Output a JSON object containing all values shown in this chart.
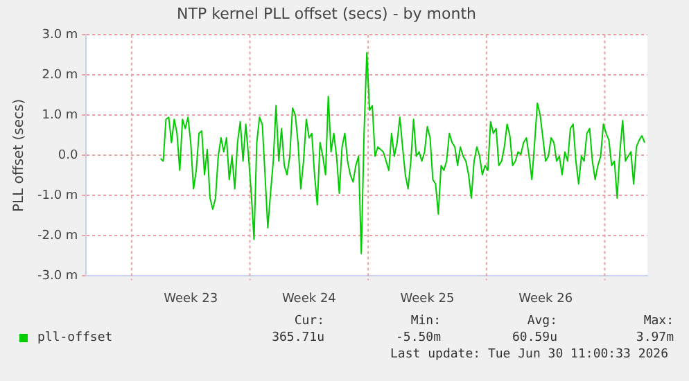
{
  "chart_data": {
    "type": "line",
    "title": "NTP kernel PLL offset (secs) - by month",
    "ylabel": "PLL offset (secs)",
    "categories": [
      null,
      null,
      null,
      null,
      null,
      null,
      null,
      null,
      null,
      null,
      null,
      null,
      null,
      null,
      null,
      null,
      null,
      null,
      null,
      null,
      null,
      null,
      null,
      null,
      null,
      null,
      null,
      null,
      null,
      null,
      null,
      null,
      null,
      null,
      null,
      null,
      null,
      null,
      "Week 23",
      null,
      null,
      null,
      null,
      null,
      null,
      null,
      null,
      null,
      null,
      null,
      null,
      null,
      null,
      null,
      null,
      null,
      null,
      null,
      null,
      null,
      null,
      null,
      null,
      null,
      null,
      null,
      null,
      null,
      null,
      null,
      null,
      null,
      null,
      null,
      null,
      null,
      null,
      null,
      null,
      null,
      null,
      "Week 24",
      null,
      null,
      null,
      null,
      null,
      null,
      null,
      null,
      null,
      null,
      null,
      null,
      null,
      null,
      null,
      null,
      null,
      null,
      null,
      null,
      null,
      null,
      null,
      null,
      null,
      null,
      null,
      null,
      null,
      null,
      null,
      null,
      null,
      null,
      null,
      null,
      null,
      null,
      null,
      null,
      null,
      null,
      "Week 25",
      null,
      null,
      null,
      null,
      null,
      null,
      null,
      null,
      null,
      null,
      null,
      null,
      null,
      null,
      null,
      null,
      null,
      null,
      null,
      null,
      null,
      null,
      null,
      null,
      null,
      null,
      null,
      null,
      null,
      null,
      null,
      null,
      null,
      null,
      null,
      null,
      null,
      null,
      null,
      null,
      null,
      null,
      "Week 26",
      null,
      null,
      null,
      null,
      null,
      null,
      null,
      null,
      null,
      null,
      null,
      null,
      null,
      null,
      null,
      null,
      null,
      null,
      null,
      null,
      null,
      null,
      null,
      null,
      null,
      null,
      null,
      null,
      null,
      null,
      null,
      null,
      null,
      null,
      null,
      null,
      null
    ],
    "ylim": [
      -3,
      3
    ],
    "yticks": [
      {
        "value": -3,
        "label": "-3.0 m"
      },
      {
        "value": -2,
        "label": "-2.0 m"
      },
      {
        "value": -1,
        "label": "-1.0 m"
      },
      {
        "value": 0,
        "label": "0.0"
      },
      {
        "value": 1,
        "label": "1.0 m"
      },
      {
        "value": 2,
        "label": "2.0 m"
      },
      {
        "value": 3,
        "label": "3.0 m"
      }
    ],
    "grid": true,
    "legend": "bottom",
    "marker": "none",
    "line_style": "solid",
    "annotations": [
      "Cur:",
      "Min:",
      "Avg:",
      "Max:",
      "365.71u",
      "-5.50m",
      "60.59u",
      "3.97m",
      "Last update: Tue Jun 30 11:00:33 2026"
    ],
    "series": [
      {
        "name": "pll-offset",
        "color": "#00cc00",
        "values": [
          null,
          null,
          null,
          null,
          null,
          null,
          null,
          null,
          null,
          null,
          null,
          null,
          null,
          null,
          null,
          null,
          null,
          null,
          null,
          null,
          null,
          null,
          null,
          null,
          null,
          null,
          null,
          -0.08,
          -0.14,
          0.9,
          0.95,
          0.32,
          0.9,
          0.55,
          -0.37,
          0.9,
          0.67,
          0.95,
          0.32,
          -0.83,
          -0.37,
          0.55,
          0.61,
          -0.48,
          0.15,
          -1.06,
          -1.34,
          -1.06,
          -0.02,
          0.44,
          0.09,
          0.44,
          -0.6,
          -0.02,
          -0.83,
          0.32,
          0.84,
          -0.14,
          0.78,
          -0.02,
          -0.94,
          -2.09,
          0.32,
          0.95,
          0.78,
          -0.48,
          -1.8,
          -0.94,
          -0.14,
          1.24,
          -0.14,
          0.67,
          -0.25,
          -0.48,
          -0.02,
          1.18,
          1.01,
          0.32,
          -0.83,
          -0.14,
          0.9,
          0.44,
          0.55,
          -0.48,
          -1.23,
          0.32,
          -0.02,
          -0.48,
          1.47,
          0.09,
          0.55,
          -0.02,
          -0.94,
          0.21,
          0.55,
          -0.14,
          -0.48,
          -0.66,
          -0.25,
          -0.02,
          -2.44,
          0.55,
          2.56,
          1.13,
          1.24,
          -0.02,
          0.21,
          0.15,
          0.09,
          -0.14,
          -0.37,
          0.55,
          -0.02,
          0.32,
          0.95,
          0.21,
          -0.48,
          -0.83,
          -0.14,
          0.9,
          -0.02,
          0.09,
          -0.14,
          0.09,
          0.72,
          0.44,
          -0.6,
          -0.71,
          -1.46,
          -0.25,
          -0.37,
          -0.14,
          0.55,
          0.32,
          0.21,
          -0.25,
          0.21,
          -0.02,
          -0.14,
          -0.48,
          -1.06,
          -0.14,
          0.21,
          -0.02,
          -0.48,
          -0.25,
          -0.37,
          0.84,
          0.55,
          0.67,
          -0.25,
          -0.14,
          0.21,
          0.78,
          0.49,
          -0.25,
          -0.14,
          0.09,
          0.03,
          0.32,
          0.44,
          -0.02,
          -0.6,
          0.32,
          1.3,
          1.01,
          0.44,
          -0.14,
          -0.02,
          0.44,
          0.32,
          -0.14,
          -0.02,
          -0.48,
          0.09,
          -0.14,
          0.67,
          0.78,
          -0.14,
          -0.71,
          -0.02,
          -0.14,
          0.55,
          0.67,
          -0.14,
          -0.6,
          -0.25,
          -0.02,
          0.78,
          0.55,
          0.38,
          -0.25,
          -0.14,
          -1.06,
          0.09,
          0.87,
          -0.14,
          -0.02,
          0.09,
          -0.71,
          0.21,
          0.38,
          0.49,
          0.32,
          null
        ]
      }
    ]
  }
}
